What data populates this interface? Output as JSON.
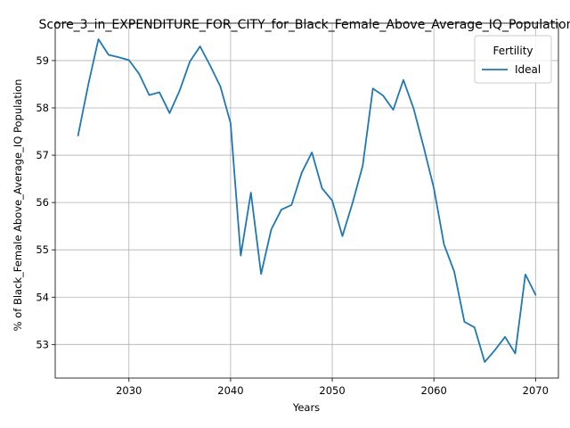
{
  "chart_data": {
    "type": "line",
    "title": "Score_3_in_EXPENDITURE_FOR_CITY_for_Black_Female_Above_Average_IQ_Population",
    "xlabel": "Years",
    "ylabel": "% of Black_Female Above_Average_IQ Population",
    "xlim": [
      2022.75,
      2072.25
    ],
    "ylim": [
      52.29,
      59.79
    ],
    "xticks": [
      2030,
      2040,
      2050,
      2060,
      2070
    ],
    "yticks": [
      53,
      54,
      55,
      56,
      57,
      58,
      59
    ],
    "grid": true,
    "legend": {
      "title": "Fertility",
      "position": "top-right"
    },
    "series": [
      {
        "name": "Ideal",
        "color": "#1f77b4",
        "x": [
          2025,
          2026,
          2027,
          2028,
          2029,
          2030,
          2031,
          2032,
          2033,
          2034,
          2035,
          2036,
          2037,
          2038,
          2039,
          2040,
          2041,
          2042,
          2043,
          2044,
          2045,
          2046,
          2047,
          2048,
          2049,
          2050,
          2051,
          2052,
          2053,
          2054,
          2055,
          2056,
          2057,
          2058,
          2059,
          2060,
          2061,
          2062,
          2063,
          2064,
          2065,
          2066,
          2067,
          2068,
          2069,
          2070
        ],
        "y": [
          57.42,
          58.49,
          59.45,
          59.12,
          59.07,
          59.01,
          58.72,
          58.27,
          58.33,
          57.89,
          58.37,
          58.98,
          59.3,
          58.89,
          58.45,
          57.68,
          54.88,
          56.21,
          54.49,
          55.43,
          55.85,
          55.95,
          56.63,
          57.06,
          56.3,
          56.04,
          55.29,
          55.99,
          56.78,
          58.41,
          58.26,
          57.96,
          58.59,
          57.99,
          57.17,
          56.3,
          55.11,
          54.54,
          53.48,
          53.36,
          52.63,
          52.88,
          53.16,
          52.81,
          54.48,
          54.05
        ]
      }
    ]
  }
}
